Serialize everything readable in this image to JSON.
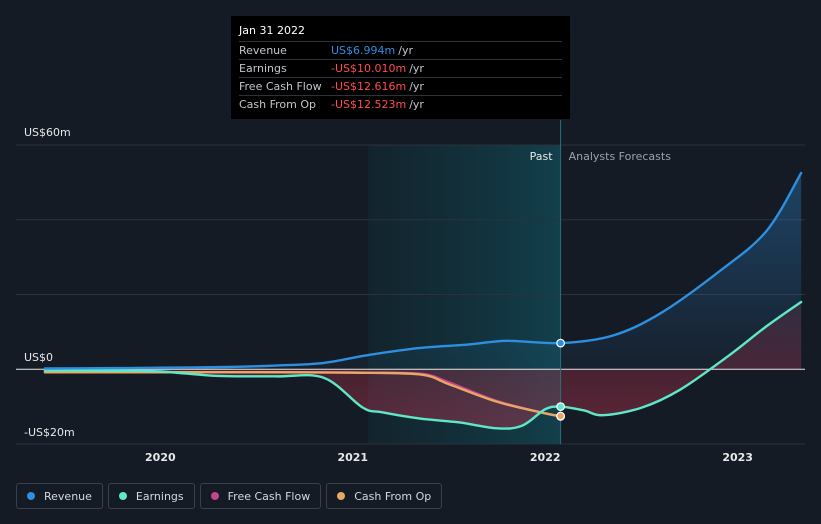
{
  "chart_data": {
    "type": "line",
    "y_axis": {
      "top_label": "US$60m",
      "zero_label": "US$0",
      "bottom_label": "-US$20m",
      "ylim": [
        -20,
        60
      ]
    },
    "x_ticks": [
      "2020",
      "2021",
      "2022",
      "2023"
    ],
    "xlim": [
      2019.25,
      2023.35
    ],
    "region_labels": {
      "past": "Past",
      "forecast": "Analysts Forecasts"
    },
    "past_start": 2021.08,
    "divider": 2022.08,
    "series": [
      {
        "name": "Revenue",
        "color": "#2d8fe0",
        "points": [
          [
            2019.4,
            0.2
          ],
          [
            2019.75,
            0.3
          ],
          [
            2020.0,
            0.4
          ],
          [
            2020.35,
            0.6
          ],
          [
            2020.6,
            1.0
          ],
          [
            2020.85,
            1.7
          ],
          [
            2021.08,
            3.8
          ],
          [
            2021.35,
            5.7
          ],
          [
            2021.6,
            6.6
          ],
          [
            2021.8,
            7.6
          ],
          [
            2022.08,
            6.994
          ],
          [
            2022.35,
            9.0
          ],
          [
            2022.6,
            15.0
          ],
          [
            2022.9,
            26.0
          ],
          [
            2023.15,
            37.0
          ],
          [
            2023.33,
            52.5
          ]
        ]
      },
      {
        "name": "Earnings",
        "color": "#5ee8c6",
        "points": [
          [
            2019.4,
            -0.3
          ],
          [
            2019.75,
            -0.4
          ],
          [
            2020.0,
            -0.6
          ],
          [
            2020.3,
            -1.8
          ],
          [
            2020.6,
            -1.9
          ],
          [
            2020.85,
            -2.3
          ],
          [
            2021.05,
            -10.2
          ],
          [
            2021.15,
            -11.5
          ],
          [
            2021.35,
            -13.2
          ],
          [
            2021.55,
            -14.2
          ],
          [
            2021.75,
            -15.8
          ],
          [
            2021.88,
            -15.1
          ],
          [
            2022.0,
            -10.7
          ],
          [
            2022.08,
            -10.01
          ],
          [
            2022.2,
            -11.0
          ],
          [
            2022.3,
            -12.3
          ],
          [
            2022.5,
            -10.3
          ],
          [
            2022.7,
            -5.5
          ],
          [
            2022.95,
            3.5
          ],
          [
            2023.15,
            11.5
          ],
          [
            2023.33,
            18.0
          ]
        ]
      },
      {
        "name": "Free Cash Flow",
        "color": "#c2468a",
        "points": [
          [
            2019.4,
            -0.8
          ],
          [
            2020.0,
            -0.8
          ],
          [
            2020.6,
            -0.8
          ],
          [
            2021.0,
            -0.9
          ],
          [
            2021.35,
            -1.2
          ],
          [
            2021.5,
            -3.5
          ],
          [
            2021.75,
            -8.5
          ],
          [
            2022.0,
            -11.8
          ],
          [
            2022.08,
            -12.616
          ]
        ]
      },
      {
        "name": "Cash From Op",
        "color": "#e8a765",
        "points": [
          [
            2019.4,
            -0.8
          ],
          [
            2020.0,
            -0.8
          ],
          [
            2020.6,
            -0.8
          ],
          [
            2021.0,
            -0.9
          ],
          [
            2021.35,
            -1.4
          ],
          [
            2021.5,
            -4.0
          ],
          [
            2021.75,
            -8.7
          ],
          [
            2022.0,
            -11.8
          ],
          [
            2022.08,
            -12.523
          ]
        ]
      }
    ],
    "tooltip": {
      "date": "Jan 31 2022",
      "rows": [
        {
          "label": "Revenue",
          "value": "US$6.994m",
          "unit": "/yr",
          "color": "#2d8fe0"
        },
        {
          "label": "Earnings",
          "value": "-US$10.010m",
          "unit": "/yr",
          "color": "#ff4d4d"
        },
        {
          "label": "Free Cash Flow",
          "value": "-US$12.616m",
          "unit": "/yr",
          "color": "#ff4d4d"
        },
        {
          "label": "Cash From Op",
          "value": "-US$12.523m",
          "unit": "/yr",
          "color": "#ff4d4d"
        }
      ]
    }
  },
  "legend": [
    {
      "label": "Revenue",
      "color": "#2d8fe0"
    },
    {
      "label": "Earnings",
      "color": "#5ee8c6"
    },
    {
      "label": "Free Cash Flow",
      "color": "#c2468a"
    },
    {
      "label": "Cash From Op",
      "color": "#e8a765"
    }
  ]
}
